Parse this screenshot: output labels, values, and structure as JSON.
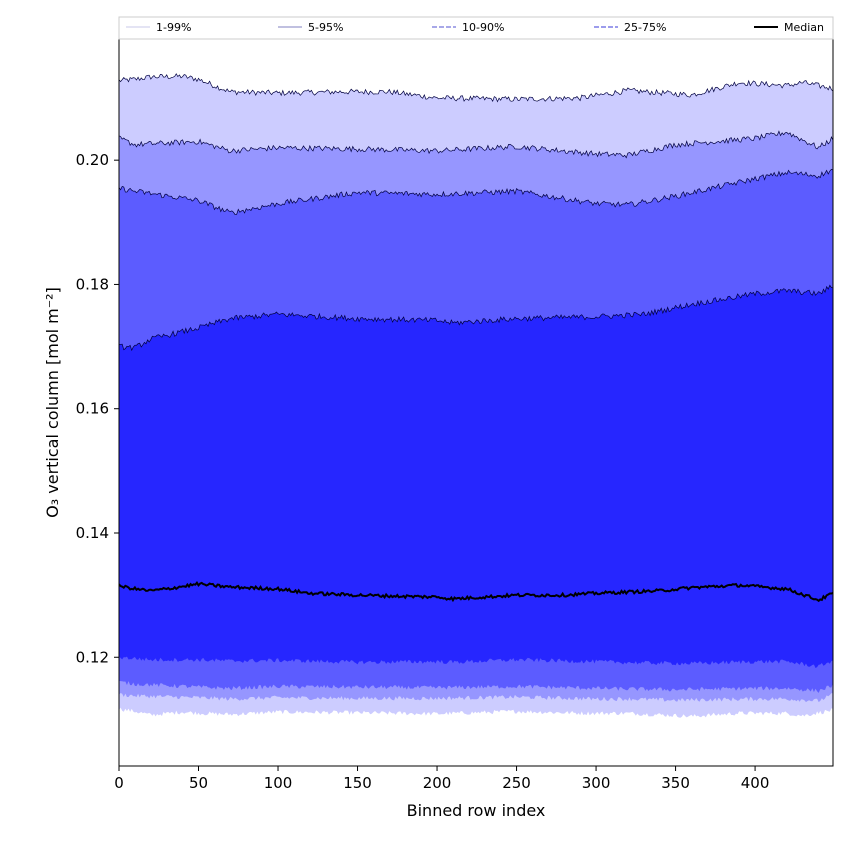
{
  "chart_data": {
    "type": "area",
    "xlabel": "Binned row index",
    "ylabel": "O₃ vertical column [mol m⁻²]",
    "xlim": [
      0,
      449
    ],
    "ylim": [
      0.1025,
      0.2195
    ],
    "xticks": [
      0,
      50,
      100,
      150,
      200,
      250,
      300,
      350,
      400
    ],
    "yticks": [
      0.12,
      0.14,
      0.16,
      0.18,
      0.2
    ],
    "ytick_labels": [
      "0.12",
      "0.14",
      "0.16",
      "0.18",
      "0.20"
    ],
    "legend_placement": "top, above plot, single row",
    "bands": [
      {
        "name": "1-99%",
        "color": "#ccccff",
        "line_color": "#c8c8e8",
        "line_style": "solid",
        "x": [
          0,
          10,
          20,
          40,
          50,
          70,
          100,
          140,
          170,
          200,
          250,
          290,
          320,
          360,
          390,
          420,
          430,
          449
        ],
        "low": [
          0.1117,
          0.1113,
          0.1107,
          0.1112,
          0.111,
          0.1108,
          0.1112,
          0.1111,
          0.111,
          0.1109,
          0.1113,
          0.111,
          0.111,
          0.1105,
          0.111,
          0.111,
          0.1106,
          0.1115
        ],
        "high": [
          0.2128,
          0.213,
          0.2134,
          0.2135,
          0.213,
          0.211,
          0.2108,
          0.211,
          0.211,
          0.21,
          0.2098,
          0.21,
          0.2112,
          0.2105,
          0.2125,
          0.212,
          0.2125,
          0.2115
        ]
      },
      {
        "name": "5-95%",
        "color": "#9696ff",
        "line_color": "#8080c0",
        "line_style": "solid",
        "x": [
          0,
          10,
          50,
          70,
          100,
          150,
          200,
          250,
          300,
          320,
          350,
          400,
          420,
          440,
          449
        ],
        "low": [
          0.114,
          0.1138,
          0.1135,
          0.1133,
          0.1135,
          0.1134,
          0.1134,
          0.1136,
          0.1133,
          0.1133,
          0.1131,
          0.1133,
          0.1133,
          0.113,
          0.114
        ],
        "high": [
          0.2035,
          0.2025,
          0.203,
          0.2015,
          0.202,
          0.2018,
          0.2015,
          0.2022,
          0.201,
          0.2008,
          0.2025,
          0.2035,
          0.2045,
          0.202,
          0.2035
        ]
      },
      {
        "name": "10-90%",
        "color": "#5c5cff",
        "line_color": "#5050d0",
        "line_style": "dashed",
        "x": [
          0,
          10,
          50,
          70,
          100,
          150,
          200,
          250,
          300,
          320,
          350,
          400,
          420,
          440,
          449
        ],
        "low": [
          0.116,
          0.1157,
          0.1152,
          0.115,
          0.1153,
          0.1152,
          0.1151,
          0.1153,
          0.115,
          0.1149,
          0.1148,
          0.115,
          0.115,
          0.1146,
          0.1155
        ],
        "high": [
          0.1955,
          0.195,
          0.1935,
          0.1915,
          0.193,
          0.1948,
          0.1945,
          0.195,
          0.193,
          0.1928,
          0.1942,
          0.197,
          0.198,
          0.1975,
          0.1985
        ]
      },
      {
        "name": "25-75%",
        "color": "#2626ff",
        "line_color": "#3a3ad8",
        "line_style": "dashed",
        "x": [
          0,
          10,
          20,
          50,
          70,
          100,
          150,
          200,
          210,
          250,
          300,
          330,
          360,
          400,
          420,
          440,
          449
        ],
        "low": [
          0.12,
          0.1198,
          0.1196,
          0.1196,
          0.1194,
          0.1195,
          0.1192,
          0.1193,
          0.1192,
          0.1196,
          0.1193,
          0.1191,
          0.119,
          0.1193,
          0.1193,
          0.1185,
          0.1195
        ],
        "high": [
          0.17,
          0.1698,
          0.1712,
          0.173,
          0.1745,
          0.1752,
          0.1745,
          0.1742,
          0.1738,
          0.1745,
          0.1748,
          0.1752,
          0.1768,
          0.1785,
          0.179,
          0.1785,
          0.1798
        ]
      }
    ],
    "median": {
      "name": "Median",
      "color": "#000000",
      "x": [
        0,
        10,
        20,
        30,
        50,
        70,
        100,
        120,
        150,
        180,
        200,
        210,
        250,
        280,
        300,
        340,
        360,
        390,
        420,
        440,
        449
      ],
      "values": [
        0.1315,
        0.131,
        0.1307,
        0.131,
        0.1318,
        0.1313,
        0.131,
        0.1303,
        0.13,
        0.1298,
        0.1297,
        0.1294,
        0.13,
        0.13,
        0.1303,
        0.1307,
        0.1312,
        0.1316,
        0.131,
        0.1292,
        0.1303
      ]
    }
  }
}
